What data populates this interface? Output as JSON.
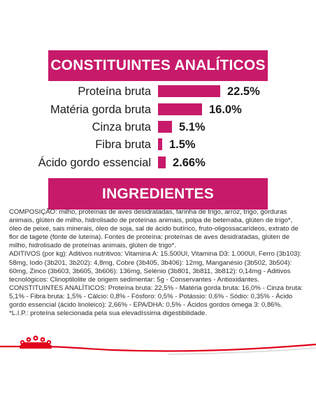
{
  "analytic": {
    "title": "CONSTITUINTES ANALÍTICOS",
    "rows": [
      {
        "label": "Proteína bruta",
        "value": "22.5%",
        "percent": 22.5
      },
      {
        "label": "Matéria gorda bruta",
        "value": "16.0%",
        "percent": 16.0
      },
      {
        "label": "Cinza bruta",
        "value": "5.1%",
        "percent": 5.1
      },
      {
        "label": "Fibra bruta",
        "value": "1.5%",
        "percent": 1.5
      },
      {
        "label": "Ácido gordo essencial",
        "value": "2.66%",
        "percent": 2.66
      }
    ]
  },
  "ingredients": {
    "title": "INGREDIENTES",
    "paragraphs": [
      "COMPOSIÇÃO: milho, proteínas de aves desidratadas, farinha de trigo, arroz, trigo, gorduras animais, glúten de milho, hidrolisado de proteínas animais, polpa de beterraba, glúten de trigo*, óleo de peixe, sais minerais, óleo de soja, sal de ácido butírico, fruto-oligossacarídeos, extrato de flor de tagete (fonte de luteína). Fontes de proteína: proteínas de aves desidratadas, glúten de milho, hidrolisado de proteínas animais, glúten de trigo*.",
      "ADITIVOS (por kg): Aditivos nutritivos: Vitamina A: 15.500UI, Vitamina D3: 1.000UI, Ferro (3b103): 58mg, Iodo (3b201, 3b202): 4,8mg, Cobre (3b405, 3b406): 12mg, Manganésio (3b502, 3b504): 60mg, Zinco (3b603, 3b605, 3b606): 136mg, Selénio (3b801, 3b811, 3b812): 0,14mg - Aditivos tecnológicos: Clinoptilolite de origem sedimentar: 5g - Conservantes - Antioxidantes.",
      "CONSTITUINTES ANALÍTICOS: Proteína bruta: 22,5% - Matéria gorda bruta: 16,0% - Cinza bruta: 5,1% - Fibra bruta: 1,5% - Cálcio: 0,8% - Fósforo: 0,5% - Potássio: 0,6% - Sódio: 0,35% - Ácido gordo essencial (ácido linoleico): 2,66% - EPA/DHA: 0,5% - Ácidos gordos ómega 3: 0,86%.",
      "*L.I.P.: proteína selecionada pela sua elevadíssima digestibilidade."
    ]
  },
  "colors": {
    "accent": "#c71a6a",
    "brand_red": "#e2001a"
  },
  "icons": {
    "logo": "royal-canin-crown-icon"
  }
}
